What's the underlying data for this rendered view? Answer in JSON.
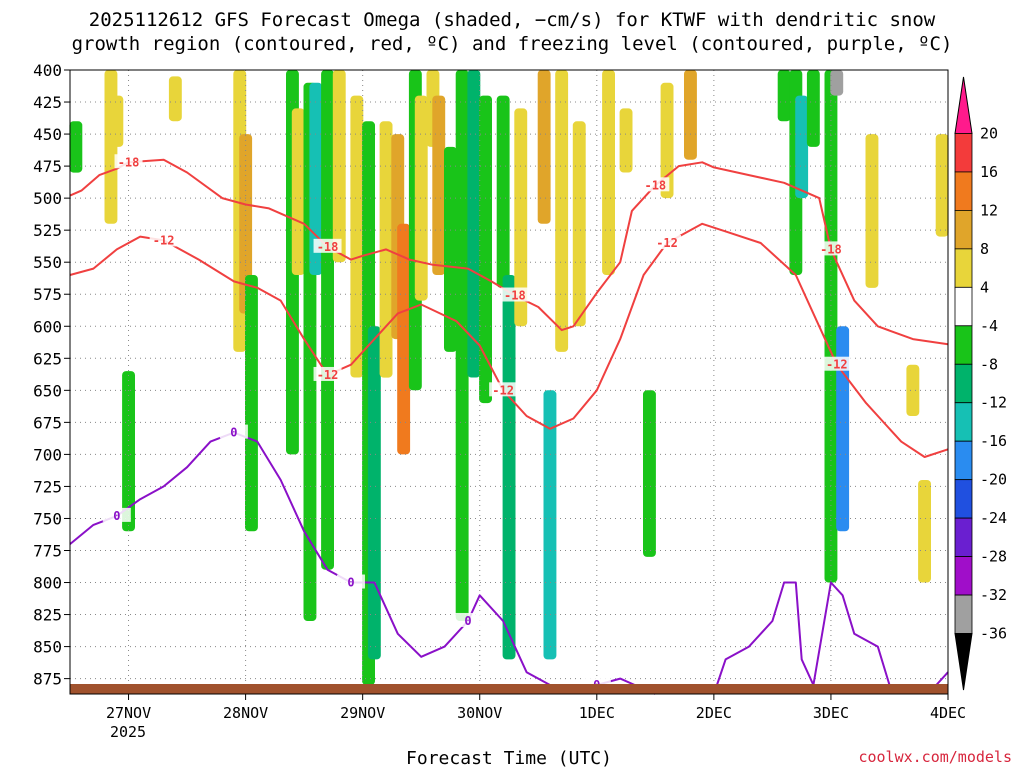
{
  "chart_data": {
    "type": "heatmap",
    "title_lines": [
      "2025112612 GFS Forecast Omega (shaded, −cm/s) for KTWF with dendritic snow",
      "growth region (contoured, red, ºC) and freezing level (contoured, purple, ºC)"
    ],
    "xlabel": "Forecast Time (UTC)",
    "credit": "coolwx.com/models",
    "y_axis": {
      "ticks": [
        "400",
        "425",
        "450",
        "475",
        "500",
        "525",
        "550",
        "575",
        "600",
        "625",
        "650",
        "675",
        "700",
        "725",
        "750",
        "775",
        "800",
        "825",
        "850",
        "875"
      ],
      "range_hpa": [
        400,
        887
      ],
      "inverted": true
    },
    "x_axis": {
      "ticks": [
        "27NOV",
        "28NOV",
        "29NOV",
        "30NOV",
        "1DEC",
        "2DEC",
        "3DEC",
        "4DEC"
      ],
      "year_label": "2025",
      "range_days": [
        26.5,
        27.0,
        28.0,
        29.0,
        30.0,
        31.0,
        32.0,
        33.0,
        34.0
      ]
    },
    "grid": true,
    "colorbar": {
      "labels": [
        "20",
        "16",
        "12",
        "8",
        "4",
        "-4",
        "-8",
        "-12",
        "-16",
        "-20",
        "-24",
        "-28",
        "-32",
        "-36"
      ],
      "colors": [
        "#ff1a8c",
        "#f33b3b",
        "#f07a1e",
        "#e0a52a",
        "#e8d53a",
        "#ffffff",
        "#19c419",
        "#00b36b",
        "#16c0b4",
        "#2a8cf0",
        "#2050e0",
        "#6a1fd0",
        "#a00ec9",
        "#a0a0a0",
        "#000000"
      ],
      "bounds": [
        24,
        20,
        16,
        12,
        8,
        4,
        -4,
        -8,
        -12,
        -16,
        -20,
        -24,
        -28,
        -32,
        -36,
        -40
      ]
    },
    "omega_cells": [
      {
        "t": 26.55,
        "p0": 440,
        "p1": 480,
        "v": -6
      },
      {
        "t": 26.85,
        "p0": 400,
        "p1": 520,
        "v": 5
      },
      {
        "t": 26.9,
        "p0": 420,
        "p1": 460,
        "v": 5
      },
      {
        "t": 27.0,
        "p0": 635,
        "p1": 760,
        "v": -6
      },
      {
        "t": 27.4,
        "p0": 405,
        "p1": 440,
        "v": 5
      },
      {
        "t": 27.95,
        "p0": 400,
        "p1": 620,
        "v": 5
      },
      {
        "t": 28.0,
        "p0": 450,
        "p1": 590,
        "v": 9
      },
      {
        "t": 28.05,
        "p0": 560,
        "p1": 760,
        "v": -6
      },
      {
        "t": 28.4,
        "p0": 400,
        "p1": 700,
        "v": -6
      },
      {
        "t": 28.45,
        "p0": 430,
        "p1": 560,
        "v": 5
      },
      {
        "t": 28.55,
        "p0": 410,
        "p1": 830,
        "v": -6
      },
      {
        "t": 28.6,
        "p0": 410,
        "p1": 560,
        "v": -13
      },
      {
        "t": 28.7,
        "p0": 400,
        "p1": 790,
        "v": -6
      },
      {
        "t": 28.8,
        "p0": 400,
        "p1": 550,
        "v": 5
      },
      {
        "t": 28.95,
        "p0": 420,
        "p1": 640,
        "v": 5
      },
      {
        "t": 29.05,
        "p0": 440,
        "p1": 880,
        "v": -6
      },
      {
        "t": 29.1,
        "p0": 600,
        "p1": 860,
        "v": -9
      },
      {
        "t": 29.2,
        "p0": 440,
        "p1": 640,
        "v": 5
      },
      {
        "t": 29.3,
        "p0": 450,
        "p1": 610,
        "v": 9
      },
      {
        "t": 29.35,
        "p0": 520,
        "p1": 700,
        "v": 13
      },
      {
        "t": 29.45,
        "p0": 400,
        "p1": 650,
        "v": -6
      },
      {
        "t": 29.5,
        "p0": 420,
        "p1": 580,
        "v": 5
      },
      {
        "t": 29.6,
        "p0": 400,
        "p1": 460,
        "v": 5
      },
      {
        "t": 29.65,
        "p0": 420,
        "p1": 560,
        "v": 9
      },
      {
        "t": 29.75,
        "p0": 460,
        "p1": 620,
        "v": -6
      },
      {
        "t": 29.85,
        "p0": 400,
        "p1": 830,
        "v": -6
      },
      {
        "t": 29.95,
        "p0": 400,
        "p1": 640,
        "v": -9
      },
      {
        "t": 30.05,
        "p0": 420,
        "p1": 660,
        "v": -6
      },
      {
        "t": 30.2,
        "p0": 420,
        "p1": 570,
        "v": -6
      },
      {
        "t": 30.25,
        "p0": 560,
        "p1": 860,
        "v": -9
      },
      {
        "t": 30.35,
        "p0": 430,
        "p1": 600,
        "v": 5
      },
      {
        "t": 30.55,
        "p0": 400,
        "p1": 520,
        "v": 9
      },
      {
        "t": 30.6,
        "p0": 650,
        "p1": 860,
        "v": -13
      },
      {
        "t": 30.7,
        "p0": 400,
        "p1": 620,
        "v": 5
      },
      {
        "t": 30.85,
        "p0": 440,
        "p1": 600,
        "v": 5
      },
      {
        "t": 31.1,
        "p0": 400,
        "p1": 560,
        "v": 5
      },
      {
        "t": 31.25,
        "p0": 430,
        "p1": 480,
        "v": 5
      },
      {
        "t": 31.45,
        "p0": 650,
        "p1": 780,
        "v": -6
      },
      {
        "t": 31.6,
        "p0": 410,
        "p1": 500,
        "v": 5
      },
      {
        "t": 31.8,
        "p0": 400,
        "p1": 470,
        "v": 9
      },
      {
        "t": 32.6,
        "p0": 400,
        "p1": 440,
        "v": -6
      },
      {
        "t": 32.7,
        "p0": 400,
        "p1": 560,
        "v": -6
      },
      {
        "t": 32.75,
        "p0": 420,
        "p1": 500,
        "v": -13
      },
      {
        "t": 32.85,
        "p0": 400,
        "p1": 460,
        "v": -6
      },
      {
        "t": 33.0,
        "p0": 400,
        "p1": 800,
        "v": -6
      },
      {
        "t": 33.05,
        "p0": 400,
        "p1": 420,
        "v": -34
      },
      {
        "t": 33.1,
        "p0": 600,
        "p1": 760,
        "v": -18
      },
      {
        "t": 33.35,
        "p0": 450,
        "p1": 570,
        "v": 5
      },
      {
        "t": 33.7,
        "p0": 630,
        "p1": 670,
        "v": 5
      },
      {
        "t": 33.8,
        "p0": 720,
        "p1": 800,
        "v": 5
      },
      {
        "t": 33.95,
        "p0": 450,
        "p1": 530,
        "v": 5
      }
    ],
    "isotherms": [
      {
        "label": "-18",
        "color": "#f04040",
        "line_labels": [
          "-18",
          "-18",
          "-18",
          "-18",
          "-18"
        ],
        "points": [
          [
            26.5,
            498
          ],
          [
            26.6,
            494
          ],
          [
            26.75,
            482
          ],
          [
            26.9,
            477
          ],
          [
            27.0,
            472
          ],
          [
            27.3,
            470
          ],
          [
            27.5,
            480
          ],
          [
            27.8,
            500
          ],
          [
            28.0,
            505
          ],
          [
            28.2,
            508
          ],
          [
            28.5,
            520
          ],
          [
            28.7,
            538
          ],
          [
            28.9,
            548
          ],
          [
            29.0,
            545
          ],
          [
            29.2,
            540
          ],
          [
            29.4,
            548
          ],
          [
            29.6,
            552
          ],
          [
            29.9,
            555
          ],
          [
            30.1,
            565
          ],
          [
            30.3,
            576
          ],
          [
            30.5,
            585
          ],
          [
            30.7,
            603
          ],
          [
            30.8,
            600
          ],
          [
            31.0,
            574
          ],
          [
            31.2,
            550
          ],
          [
            31.3,
            510
          ],
          [
            31.5,
            490
          ],
          [
            31.7,
            475
          ],
          [
            31.9,
            472
          ],
          [
            32.0,
            476
          ],
          [
            32.3,
            482
          ],
          [
            32.6,
            488
          ],
          [
            32.9,
            500
          ],
          [
            33.0,
            540
          ],
          [
            33.2,
            580
          ],
          [
            33.4,
            600
          ],
          [
            33.7,
            610
          ],
          [
            34.0,
            614
          ]
        ]
      },
      {
        "label": "-12",
        "color": "#f04040",
        "line_labels": [
          "-12",
          "-12",
          "-12",
          "-12",
          "-12"
        ],
        "points": [
          [
            26.5,
            560
          ],
          [
            26.7,
            555
          ],
          [
            26.9,
            540
          ],
          [
            27.1,
            530
          ],
          [
            27.3,
            533
          ],
          [
            27.6,
            548
          ],
          [
            27.9,
            565
          ],
          [
            28.1,
            570
          ],
          [
            28.3,
            580
          ],
          [
            28.5,
            610
          ],
          [
            28.7,
            638
          ],
          [
            28.9,
            630
          ],
          [
            29.1,
            610
          ],
          [
            29.3,
            590
          ],
          [
            29.5,
            583
          ],
          [
            29.8,
            596
          ],
          [
            30.0,
            615
          ],
          [
            30.2,
            650
          ],
          [
            30.4,
            670
          ],
          [
            30.6,
            680
          ],
          [
            30.8,
            672
          ],
          [
            31.0,
            650
          ],
          [
            31.2,
            610
          ],
          [
            31.4,
            560
          ],
          [
            31.6,
            535
          ],
          [
            31.9,
            520
          ],
          [
            32.1,
            526
          ],
          [
            32.4,
            535
          ],
          [
            32.7,
            560
          ],
          [
            32.9,
            600
          ],
          [
            33.05,
            630
          ],
          [
            33.3,
            660
          ],
          [
            33.6,
            690
          ],
          [
            33.8,
            702
          ],
          [
            34.0,
            696
          ]
        ]
      },
      {
        "label": "0",
        "color": "#8a10c8",
        "line_labels": [
          "0",
          "0",
          "0",
          "0",
          "0"
        ],
        "points": [
          [
            26.5,
            770
          ],
          [
            26.7,
            755
          ],
          [
            26.9,
            748
          ],
          [
            27.1,
            735
          ],
          [
            27.3,
            725
          ],
          [
            27.5,
            710
          ],
          [
            27.7,
            690
          ],
          [
            27.9,
            683
          ],
          [
            28.1,
            690
          ],
          [
            28.3,
            720
          ],
          [
            28.5,
            760
          ],
          [
            28.7,
            790
          ],
          [
            28.9,
            800
          ],
          [
            29.1,
            800
          ],
          [
            29.3,
            840
          ],
          [
            29.5,
            858
          ],
          [
            29.7,
            850
          ],
          [
            29.9,
            830
          ],
          [
            30.0,
            810
          ],
          [
            30.2,
            830
          ],
          [
            30.4,
            870
          ],
          [
            30.7,
            885
          ],
          [
            31.0,
            880
          ],
          [
            31.2,
            875
          ],
          [
            31.5,
            887
          ]
        ]
      },
      {
        "label": "0",
        "color": "#8a10c8",
        "line_labels": [],
        "points": [
          [
            32.0,
            887
          ],
          [
            32.1,
            860
          ],
          [
            32.3,
            850
          ],
          [
            32.5,
            830
          ],
          [
            32.6,
            800
          ],
          [
            32.7,
            800
          ],
          [
            32.75,
            860
          ],
          [
            32.85,
            880
          ],
          [
            33.0,
            800
          ],
          [
            33.1,
            810
          ],
          [
            33.2,
            840
          ],
          [
            33.4,
            850
          ],
          [
            33.5,
            880
          ],
          [
            33.9,
            880
          ],
          [
            34.0,
            870
          ]
        ]
      }
    ],
    "terrain_color": "#a0522d"
  }
}
